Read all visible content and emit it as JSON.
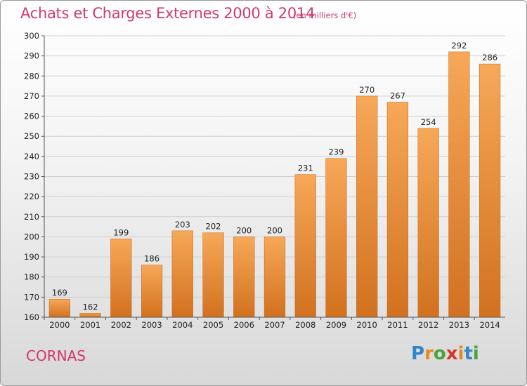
{
  "header": {
    "title": "Achats et Charges Externes 2000 à 2014",
    "unit": "(en milliers d'€)"
  },
  "footer": {
    "commune": "CORNAS",
    "logo_text": "Proxiti"
  },
  "colors": {
    "title": "#d2386b",
    "bar_light": "#f6a858",
    "bar_dark": "#d2711f",
    "grid": "#d0d0d0"
  },
  "chart_data": {
    "type": "bar",
    "title": "Achats et Charges Externes 2000 à 2014",
    "subtitle": "(en milliers d'€)",
    "xlabel": "",
    "ylabel": "",
    "categories": [
      "2000",
      "2001",
      "2002",
      "2003",
      "2004",
      "2005",
      "2006",
      "2007",
      "2008",
      "2009",
      "2010",
      "2011",
      "2012",
      "2013",
      "2014"
    ],
    "values": [
      169,
      162,
      199,
      186,
      203,
      202,
      200,
      200,
      231,
      239,
      270,
      267,
      254,
      292,
      286
    ],
    "ylim": [
      160,
      300
    ],
    "yticks": [
      160,
      170,
      180,
      190,
      200,
      210,
      220,
      230,
      240,
      250,
      260,
      270,
      280,
      290,
      300
    ],
    "grid": true,
    "legend": "none"
  }
}
